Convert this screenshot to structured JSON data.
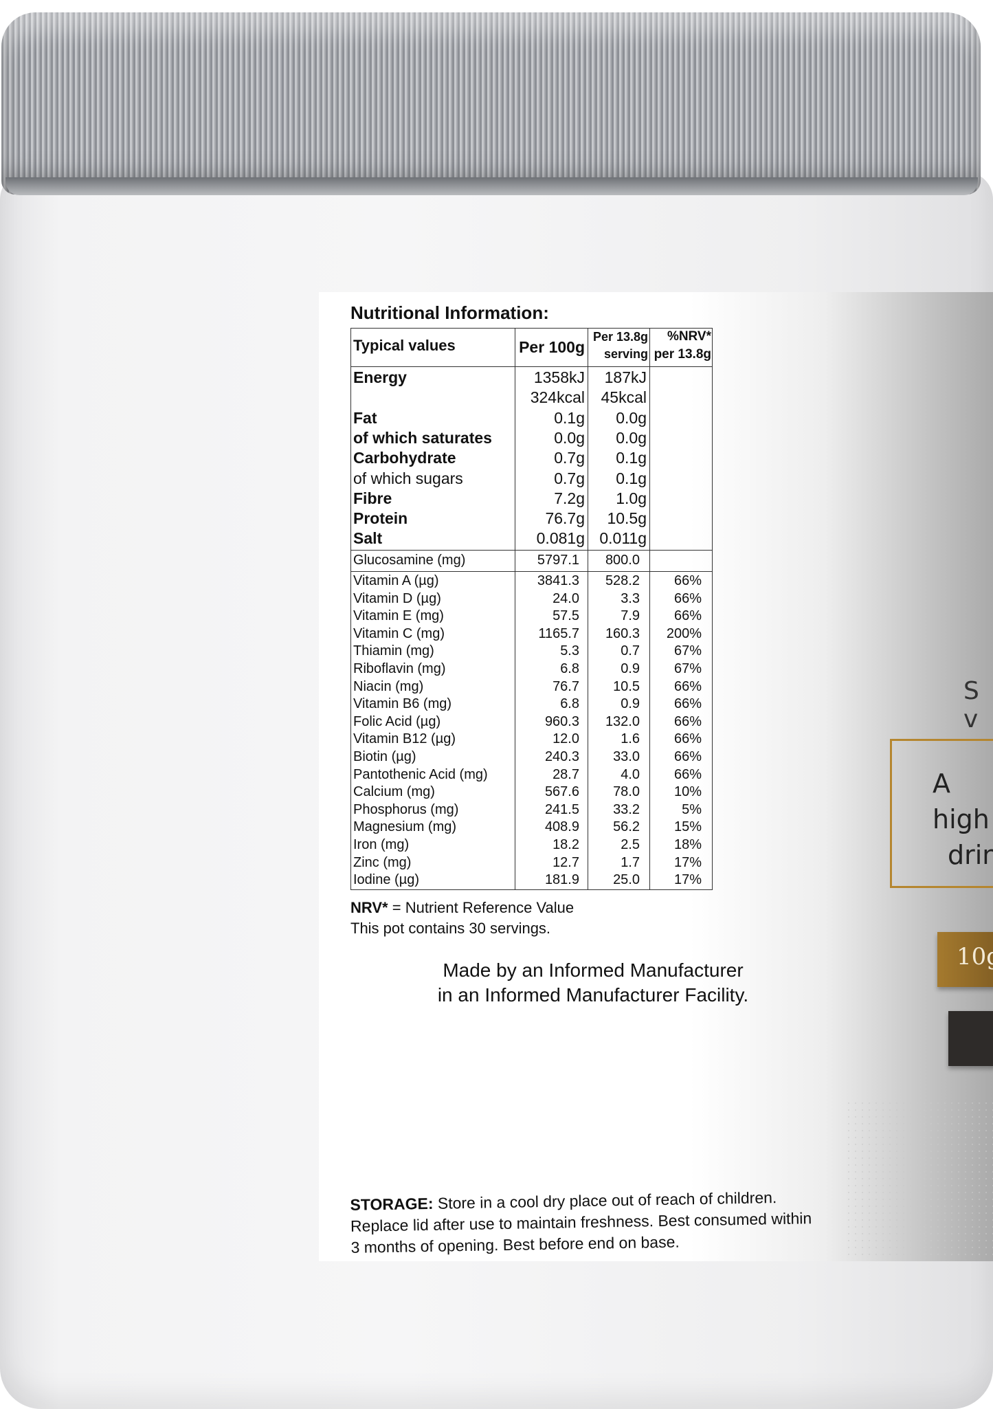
{
  "title": "Nutritional Information:",
  "table": {
    "headers": {
      "typical": "Typical values",
      "per100": "Per 100g",
      "serving_l1": "Per 13.8g",
      "serving_l2": "serving",
      "nrv_l1": "%NRV*",
      "nrv_l2": "per 13.8g"
    },
    "main_rows": [
      {
        "label": "Energy",
        "bold": true,
        "per100": "1358kJ",
        "serving": "187kJ"
      },
      {
        "label": "",
        "bold": false,
        "per100": "324kcal",
        "serving": "45kcal"
      },
      {
        "label": "Fat",
        "bold": true,
        "per100": "0.1g",
        "serving": "0.0g"
      },
      {
        "label": "of which saturates",
        "bold": true,
        "per100": "0.0g",
        "serving": "0.0g"
      },
      {
        "label": "Carbohydrate",
        "bold": true,
        "per100": "0.7g",
        "serving": "0.1g"
      },
      {
        "label": "of which sugars",
        "bold": false,
        "per100": "0.7g",
        "serving": "0.1g"
      },
      {
        "label": "Fibre",
        "bold": true,
        "per100": "7.2g",
        "serving": "1.0g"
      },
      {
        "label": "Protein",
        "bold": true,
        "per100": "76.7g",
        "serving": "10.5g"
      },
      {
        "label": "Salt",
        "bold": true,
        "per100": "0.081g",
        "serving": "0.011g"
      }
    ],
    "glucosamine": {
      "label": "Glucosamine (mg)",
      "per100": "5797.1",
      "serving": "800.0"
    },
    "vitamins": [
      {
        "label": "Vitamin A (µg)",
        "per100": "3841.3",
        "serving": "528.2",
        "nrv": "66%"
      },
      {
        "label": "Vitamin D (µg)",
        "per100": "24.0",
        "serving": "3.3",
        "nrv": "66%"
      },
      {
        "label": "Vitamin E (mg)",
        "per100": "57.5",
        "serving": "7.9",
        "nrv": "66%"
      },
      {
        "label": "Vitamin C (mg)",
        "per100": "1165.7",
        "serving": "160.3",
        "nrv": "200%"
      },
      {
        "label": "Thiamin (mg)",
        "per100": "5.3",
        "serving": "0.7",
        "nrv": "67%"
      },
      {
        "label": "Riboflavin (mg)",
        "per100": "6.8",
        "serving": "0.9",
        "nrv": "67%"
      },
      {
        "label": "Niacin (mg)",
        "per100": "76.7",
        "serving": "10.5",
        "nrv": "66%"
      },
      {
        "label": "Vitamin B6 (mg)",
        "per100": "6.8",
        "serving": "0.9",
        "nrv": "66%"
      },
      {
        "label": "Folic Acid (µg)",
        "per100": "960.3",
        "serving": "132.0",
        "nrv": "66%"
      },
      {
        "label": "Vitamin B12 (µg)",
        "per100": "12.0",
        "serving": "1.6",
        "nrv": "66%"
      },
      {
        "label": "Biotin (µg)",
        "per100": "240.3",
        "serving": "33.0",
        "nrv": "66%"
      },
      {
        "label": "Pantothenic Acid (mg)",
        "per100": "28.7",
        "serving": "4.0",
        "nrv": "66%"
      },
      {
        "label": "Calcium (mg)",
        "per100": "567.6",
        "serving": "78.0",
        "nrv": "10%"
      },
      {
        "label": "Phosphorus (mg)",
        "per100": "241.5",
        "serving": "33.2",
        "nrv": "5%"
      },
      {
        "label": "Magnesium (mg)",
        "per100": "408.9",
        "serving": "56.2",
        "nrv": "15%"
      },
      {
        "label": "Iron (mg)",
        "per100": "18.2",
        "serving": "2.5",
        "nrv": "18%"
      },
      {
        "label": "Zinc (mg)",
        "per100": "12.7",
        "serving": "1.7",
        "nrv": "17%"
      },
      {
        "label": "Iodine (µg)",
        "per100": "181.9",
        "serving": "25.0",
        "nrv": "17%"
      }
    ]
  },
  "footnote": {
    "nrv_bold": "NRV*",
    "nrv_text": " = Nutrient Reference Value",
    "servings": "This pot contains 30 servings."
  },
  "manufacturer": {
    "line1": "Made by an Informed Manufacturer",
    "line2": "in an Informed Manufacturer Facility."
  },
  "storage": {
    "label": "STORAGE:",
    "text": " Store in a cool dry place out of reach of children. Replace lid after use to maintain freshness. Best consumed within 3 months of opening. Best before end on base."
  },
  "front_partial": {
    "s_text": "S v",
    "high_l1": "A high",
    "high_l2": "drin",
    "badge": "10g"
  },
  "colors": {
    "gold": "#b5862f",
    "dark": "#2e2b29",
    "lid": "#a8aaaf"
  }
}
